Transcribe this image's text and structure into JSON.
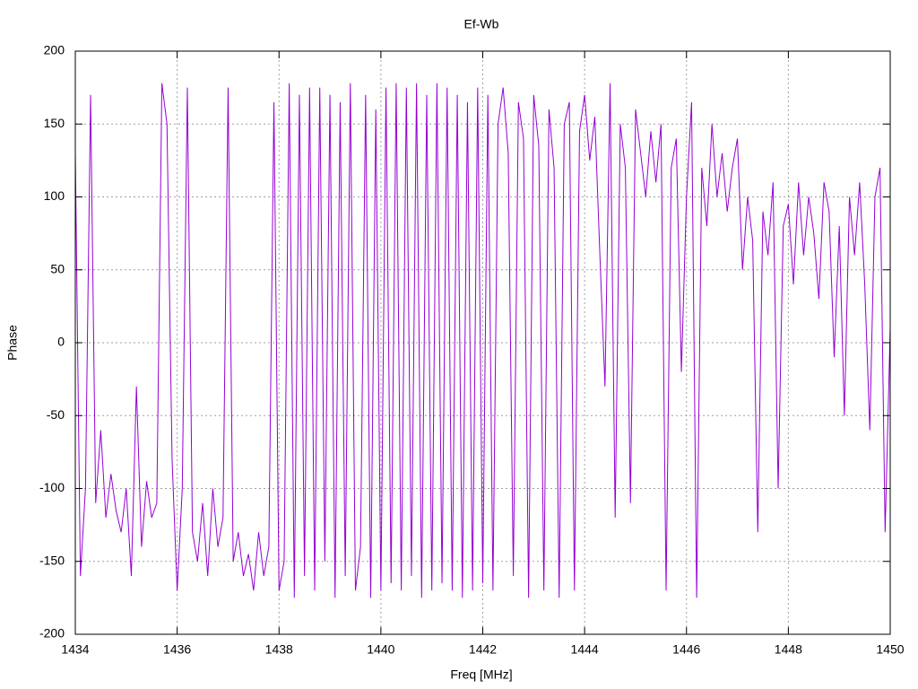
{
  "chart_data": {
    "type": "line",
    "title": "Ef-Wb",
    "x_label": "Freq [MHz]",
    "y_label": "Phase",
    "xlim": [
      1434,
      1450
    ],
    "ylim": [
      -200,
      200
    ],
    "xticks": [
      1434,
      1436,
      1438,
      1440,
      1442,
      1444,
      1446,
      1448,
      1450
    ],
    "yticks": [
      -200,
      -150,
      -100,
      -50,
      0,
      50,
      100,
      150,
      200
    ],
    "grid": true,
    "series": [
      {
        "color": "#9400d3",
        "x": [
          1434,
          1434.1,
          1434.2,
          1434.3,
          1434.4,
          1434.5,
          1434.6,
          1434.7,
          1434.8,
          1434.9,
          1435,
          1435.1,
          1435.2,
          1435.3,
          1435.4,
          1435.5,
          1435.6,
          1435.7,
          1435.8,
          1435.9,
          1436,
          1436.1,
          1436.2,
          1436.3,
          1436.4,
          1436.5,
          1436.6,
          1436.7,
          1436.8,
          1436.9,
          1437,
          1437.1,
          1437.2,
          1437.3,
          1437.4,
          1437.5,
          1437.6,
          1437.7,
          1437.8,
          1437.9,
          1438,
          1438.1,
          1438.2,
          1438.3,
          1438.4,
          1438.5,
          1438.6,
          1438.7,
          1438.8,
          1438.9,
          1439,
          1439.1,
          1439.2,
          1439.3,
          1439.4,
          1439.5,
          1439.6,
          1439.7,
          1439.8,
          1439.9,
          1440,
          1440.1,
          1440.2,
          1440.3,
          1440.4,
          1440.5,
          1440.6,
          1440.7,
          1440.8,
          1440.9,
          1441,
          1441.1,
          1441.2,
          1441.3,
          1441.4,
          1441.5,
          1441.6,
          1441.7,
          1441.8,
          1441.9,
          1442,
          1442.1,
          1442.2,
          1442.3,
          1442.4,
          1442.5,
          1442.6,
          1442.7,
          1442.8,
          1442.9,
          1443,
          1443.1,
          1443.2,
          1443.3,
          1443.4,
          1443.5,
          1443.6,
          1443.7,
          1443.8,
          1443.9,
          1444,
          1444.1,
          1444.2,
          1444.3,
          1444.4,
          1444.5,
          1444.6,
          1444.7,
          1444.8,
          1444.9,
          1445,
          1445.1,
          1445.2,
          1445.3,
          1445.4,
          1445.5,
          1445.6,
          1445.7,
          1445.8,
          1445.9,
          1446,
          1446.1,
          1446.2,
          1446.3,
          1446.4,
          1446.5,
          1446.6,
          1446.7,
          1446.8,
          1446.9,
          1447,
          1447.1,
          1447.2,
          1447.3,
          1447.4,
          1447.5,
          1447.6,
          1447.7,
          1447.8,
          1447.9,
          1448,
          1448.1,
          1448.2,
          1448.3,
          1448.4,
          1448.5,
          1448.6,
          1448.7,
          1448.8,
          1448.9,
          1449,
          1449.1,
          1449.2,
          1449.3,
          1449.4,
          1449.5,
          1449.6,
          1449.7,
          1449.8,
          1449.9,
          1450
        ],
        "values": [
          130,
          -160,
          -100,
          170,
          -110,
          -60,
          -120,
          -90,
          -115,
          -130,
          -100,
          -160,
          -30,
          -140,
          -95,
          -120,
          -110,
          178,
          150,
          -80,
          -170,
          -100,
          175,
          -130,
          -150,
          -110,
          -160,
          -100,
          -140,
          -120,
          175,
          -150,
          -130,
          -160,
          -145,
          -170,
          -130,
          -160,
          -140,
          165,
          -170,
          -150,
          178,
          -175,
          170,
          -160,
          175,
          -170,
          175,
          -150,
          170,
          -175,
          165,
          -160,
          178,
          -170,
          -140,
          170,
          -175,
          160,
          -170,
          175,
          -165,
          178,
          -170,
          175,
          -160,
          178,
          -175,
          170,
          -170,
          178,
          -165,
          175,
          -170,
          170,
          -175,
          165,
          -170,
          175,
          -165,
          170,
          -170,
          150,
          175,
          130,
          -160,
          165,
          140,
          -175,
          170,
          135,
          -170,
          160,
          120,
          -175,
          150,
          165,
          -170,
          145,
          170,
          125,
          155,
          60,
          -30,
          178,
          -120,
          150,
          120,
          -110,
          160,
          130,
          100,
          145,
          110,
          150,
          -170,
          120,
          140,
          -20,
          100,
          165,
          -175,
          120,
          80,
          150,
          100,
          130,
          90,
          120,
          140,
          50,
          100,
          70,
          -130,
          90,
          60,
          110,
          -100,
          80,
          95,
          40,
          110,
          60,
          100,
          75,
          30,
          110,
          90,
          -10,
          80,
          -50,
          100,
          60,
          110,
          40,
          -60,
          100,
          120,
          -130,
          10
        ]
      }
    ]
  }
}
